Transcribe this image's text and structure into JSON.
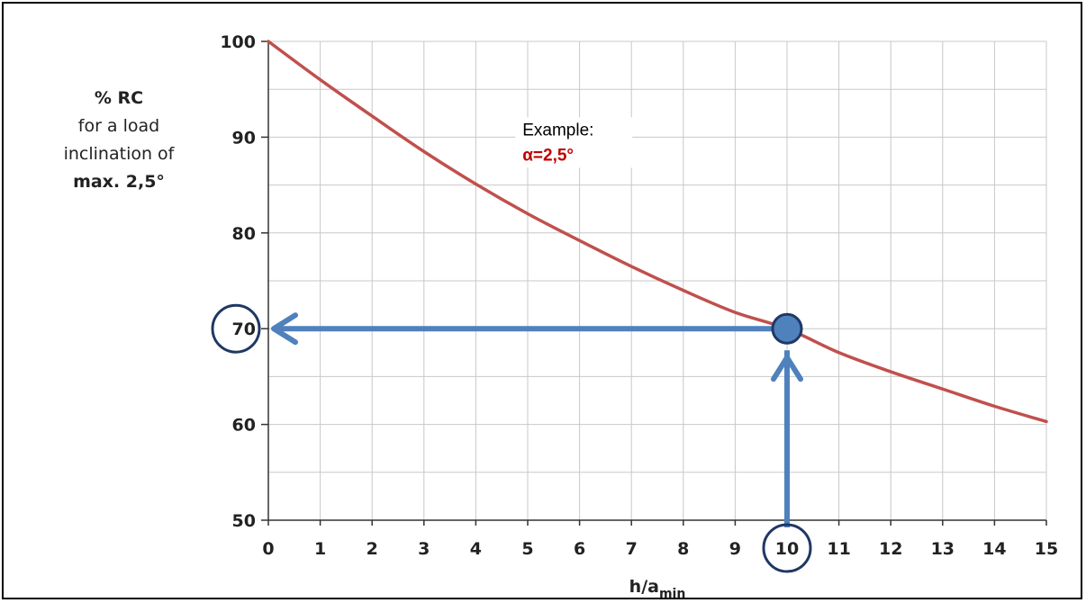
{
  "chart_data": {
    "type": "line",
    "ylabel": {
      "line1": "% RC",
      "line2": "for a load",
      "line3": "inclination of",
      "line4": "max. 2,5°"
    },
    "xlabel": {
      "main": "h/a",
      "sub": "min"
    },
    "xlim": [
      0,
      15
    ],
    "ylim": [
      50,
      100
    ],
    "x_ticks": [
      0,
      1,
      2,
      3,
      4,
      5,
      6,
      7,
      8,
      9,
      10,
      11,
      12,
      13,
      14,
      15
    ],
    "y_ticks": [
      50,
      60,
      70,
      80,
      90,
      100
    ],
    "grid": true,
    "series": [
      {
        "color": "#c0504d",
        "x": [
          0,
          1,
          2,
          3,
          4,
          5,
          6,
          7,
          8,
          9,
          10,
          11,
          12,
          13,
          14,
          15
        ],
        "y": [
          100,
          96,
          92.2,
          88.5,
          85.1,
          82,
          79.2,
          76.5,
          74,
          71.7,
          70,
          67.5,
          65.5,
          63.7,
          61.9,
          60.3
        ]
      }
    ],
    "annotation": {
      "line1": "Example:",
      "line2": "α=2,5°",
      "x": 4.9,
      "y": 90
    },
    "example_point": {
      "x": 10,
      "y": 70
    },
    "highlight_color": "#4f81bd",
    "circle_color": "#1f3864"
  }
}
